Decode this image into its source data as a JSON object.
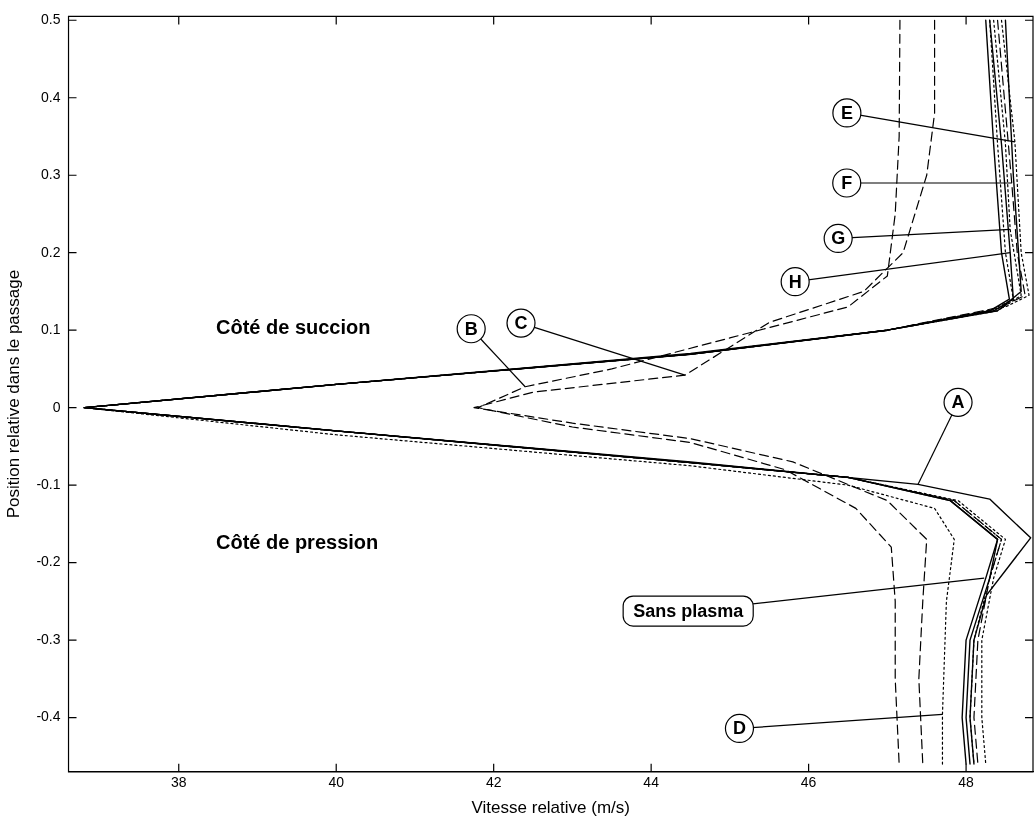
{
  "chart_data": {
    "type": "line",
    "xlabel": "Vitesse relative (m/s)",
    "ylabel": "Position relative dans le passage",
    "xlim": [
      36.6,
      48.85
    ],
    "ylim": [
      -0.47,
      0.505
    ],
    "xticks": [
      38,
      40,
      42,
      44,
      46,
      48
    ],
    "yticks": [
      -0.4,
      -0.3,
      -0.2,
      -0.1,
      0,
      0.1,
      0.2,
      0.3,
      0.4,
      0.5
    ],
    "legend": false,
    "marker": "none",
    "series": [
      {
        "color": "#000000",
        "line_style": "solid",
        "x": [
          48.25,
          48.35,
          48.45,
          48.55,
          48.3,
          47,
          44.5,
          40,
          36.8,
          40,
          44.5,
          46.5,
          47.8,
          48.4,
          48.25,
          48.0,
          47.95,
          48.0
        ],
        "values": [
          0.5,
          0.34,
          0.2,
          0.14,
          0.125,
          0.1,
          0.069,
          0.03,
          0,
          -0.03,
          -0.071,
          -0.09,
          -0.12,
          -0.17,
          -0.22,
          -0.3,
          -0.4,
          -0.46
        ]
      },
      {
        "color": "#000000",
        "line_style": "solid",
        "x": [
          48.5,
          48.6,
          48.7,
          48.4,
          47,
          44.5,
          40,
          36.8,
          40,
          44.5,
          47.39,
          48.3,
          48.82,
          48.26,
          48.1,
          48.05,
          48.1
        ],
        "values": [
          0.5,
          0.3,
          0.15,
          0.125,
          0.1,
          0.07,
          0.03,
          0,
          -0.03,
          -0.07,
          -0.099,
          -0.118,
          -0.168,
          -0.242,
          -0.3,
          -0.4,
          -0.46
        ]
      },
      {
        "color": "#000000",
        "line_style": "dashed",
        "x": [
          47.16,
          47.15,
          47.1,
          47.0,
          46.5,
          45,
          43.5,
          42.4,
          41.8,
          43,
          44.5,
          45.7,
          46.6,
          47.05,
          47.1,
          47.1,
          47.15
        ],
        "values": [
          0.5,
          0.35,
          0.25,
          0.17,
          0.13,
          0.09,
          0.05,
          0.027,
          0,
          -0.025,
          -0.045,
          -0.08,
          -0.13,
          -0.18,
          -0.25,
          -0.35,
          -0.46
        ]
      },
      {
        "color": "#000000",
        "line_style": "dashed",
        "x": [
          47.6,
          47.6,
          47.5,
          47.2,
          46.7,
          45.5,
          44.43,
          42.5,
          41.75,
          43,
          44.5,
          45.8,
          47,
          47.5,
          47.45,
          47.4,
          47.45
        ],
        "values": [
          0.5,
          0.38,
          0.3,
          0.2,
          0.15,
          0.11,
          0.042,
          0.02,
          0,
          -0.02,
          -0.04,
          -0.07,
          -0.12,
          -0.17,
          -0.25,
          -0.35,
          -0.46
        ]
      },
      {
        "color": "#000000",
        "line_style": "dotted",
        "x": [
          48.3,
          48.4,
          48.5,
          48.6,
          48.3,
          47,
          44.5,
          40,
          36.8,
          40,
          44.5,
          46.5,
          47.6,
          47.85,
          47.75,
          47.7,
          47.7
        ],
        "values": [
          0.5,
          0.34,
          0.2,
          0.14,
          0.125,
          0.1,
          0.069,
          0.03,
          0,
          -0.035,
          -0.075,
          -0.1,
          -0.13,
          -0.17,
          -0.25,
          -0.396,
          -0.46
        ]
      },
      {
        "color": "#000000",
        "line_style": "dotted",
        "x": [
          48.45,
          48.62,
          48.7,
          48.8,
          48.5,
          47,
          44.5,
          40,
          36.8,
          40,
          44.5,
          46.5,
          47.9,
          48.5,
          48.35,
          48.2,
          48.2,
          48.25
        ],
        "values": [
          0.5,
          0.343,
          0.2,
          0.145,
          0.13,
          0.1,
          0.069,
          0.03,
          0,
          -0.03,
          -0.071,
          -0.09,
          -0.12,
          -0.17,
          -0.22,
          -0.3,
          -0.4,
          -0.46
        ]
      },
      {
        "color": "#000000",
        "line_style": "dashed",
        "x": [
          48.4,
          48.58,
          48.65,
          48.75,
          48.45,
          47,
          44.5,
          40,
          36.8,
          40,
          44.5,
          46.5,
          47.85,
          48.45,
          48.3,
          48.15,
          48.1,
          48.15
        ],
        "values": [
          0.5,
          0.29,
          0.2,
          0.145,
          0.13,
          0.1,
          0.069,
          0.03,
          0,
          -0.03,
          -0.071,
          -0.09,
          -0.12,
          -0.17,
          -0.22,
          -0.3,
          -0.4,
          -0.46
        ]
      },
      {
        "color": "#000000",
        "line_style": "dotted",
        "x": [
          48.35,
          48.5,
          48.56,
          48.7,
          48.4,
          47,
          44.5,
          40,
          36.8,
          40,
          44.5,
          46.5,
          47.85,
          48.45,
          48.3,
          48.1,
          48.05,
          48.1
        ],
        "values": [
          0.5,
          0.34,
          0.23,
          0.145,
          0.125,
          0.1,
          0.069,
          0.03,
          0,
          -0.03,
          -0.071,
          -0.09,
          -0.12,
          -0.17,
          -0.22,
          -0.3,
          -0.4,
          -0.46
        ]
      },
      {
        "color": "#000000",
        "line_style": "solid",
        "x": [
          48.3,
          48.45,
          48.56,
          48.6,
          48.35,
          47,
          44.5,
          40,
          36.8,
          40,
          44.5,
          46.5,
          47.8,
          48.4,
          48.3,
          48.05,
          48.0,
          48.05
        ],
        "values": [
          0.5,
          0.34,
          0.2,
          0.14,
          0.125,
          0.1,
          0.069,
          0.03,
          0,
          -0.03,
          -0.071,
          -0.09,
          -0.12,
          -0.17,
          -0.22,
          -0.3,
          -0.4,
          -0.46
        ]
      }
    ],
    "annotations": [
      "Côté de succion",
      "Côté de pression",
      {
        "text": "B",
        "x": 42.4,
        "y": 0.027
      },
      {
        "text": "C",
        "x": 44.43,
        "y": 0.042
      },
      {
        "text": "E",
        "x": 48.62,
        "y": 0.343
      },
      {
        "text": "F",
        "x": 48.58,
        "y": 0.29
      },
      {
        "text": "G",
        "x": 48.56,
        "y": 0.23
      },
      {
        "text": "H",
        "x": 48.56,
        "y": 0.2
      },
      {
        "text": "A",
        "x": 47.39,
        "y": -0.099
      },
      {
        "text": "Sans plasma",
        "x": 48.23,
        "y": -0.22
      },
      {
        "text": "D",
        "x": 47.7,
        "y": -0.396
      }
    ]
  }
}
